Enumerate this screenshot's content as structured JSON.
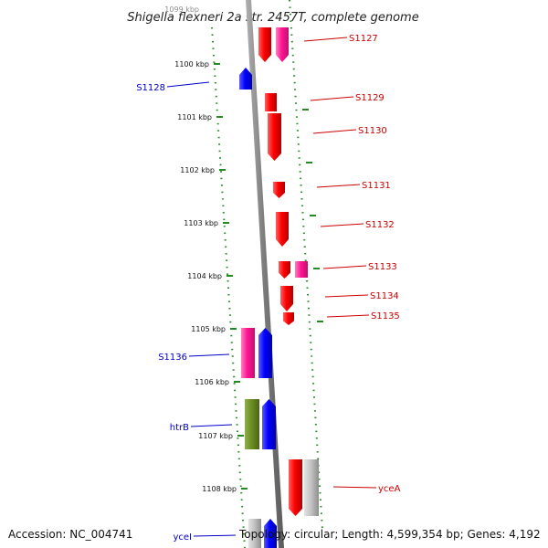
{
  "title": "Shigella flexneri 2a str. 2457T, complete genome",
  "top_cut_label": "1099 kbp",
  "kbp_ticks": [
    "1100 kbp",
    "1101 kbp",
    "1102 kbp",
    "1103 kbp",
    "1104 kbp",
    "1105 kbp",
    "1106 kbp",
    "1107 kbp",
    "1108 kbp"
  ],
  "right_labels": [
    "S1127",
    "S1129",
    "S1130",
    "S1131",
    "S1132",
    "S1133",
    "S1134",
    "S1135",
    "yceA"
  ],
  "left_labels": [
    "S1128",
    "S1136",
    "htrB",
    "yceI"
  ],
  "colors": {
    "forward": "#ff0000",
    "forward_alt": "#ff1493",
    "reverse": "#0000ff",
    "olive": "#6b8e23",
    "grey": "#b5b5b5",
    "label_right": "#cc0000",
    "label_left": "#0000cc",
    "tick": "#228b22",
    "backbone": "#8a8a8a"
  },
  "footer": {
    "accession": "Accession: NC_004741",
    "stats": "Topology: circular; Length: 4,599,354 bp; Genes: 4,192"
  }
}
